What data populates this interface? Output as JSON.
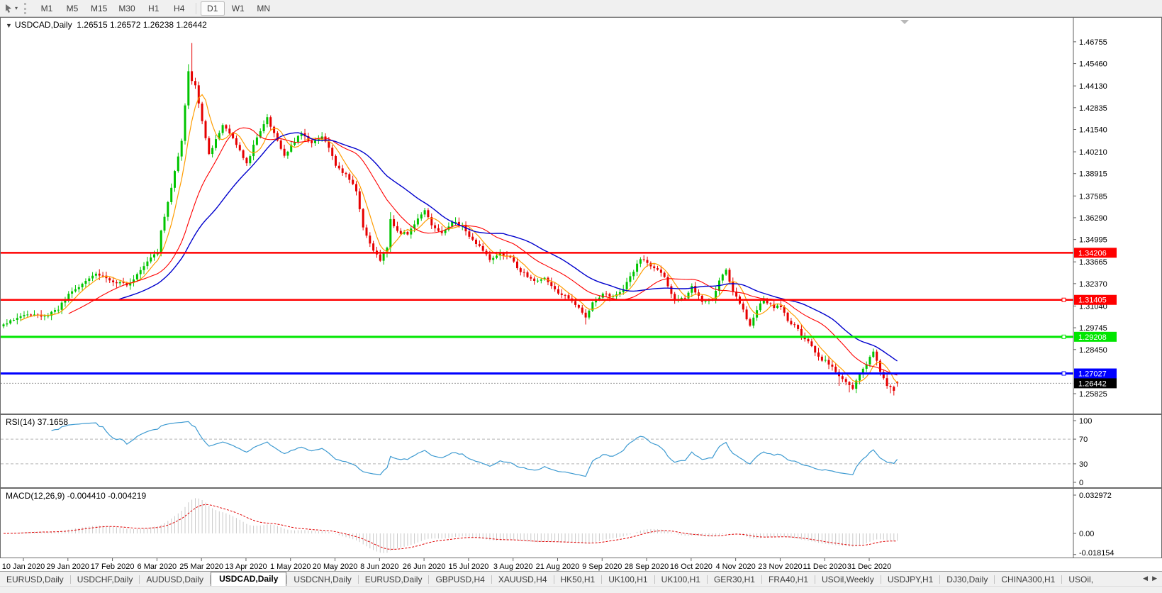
{
  "toolbar": {
    "timeframes": [
      {
        "label": "M1"
      },
      {
        "label": "M5"
      },
      {
        "label": "M15"
      },
      {
        "label": "M30"
      },
      {
        "label": "H1"
      },
      {
        "label": "H4"
      },
      {
        "label": "D1",
        "divider_before": true
      },
      {
        "label": "W1"
      },
      {
        "label": "MN"
      }
    ],
    "active_timeframe": "D1"
  },
  "main_window": {
    "title": "USDCAD,Daily",
    "ohlc": "1.26515 1.26572 1.26238 1.26442"
  },
  "price_axis": {
    "ticks": [
      "1.46755",
      "1.45460",
      "1.44130",
      "1.42835",
      "1.41540",
      "1.40210",
      "1.38915",
      "1.37585",
      "1.36290",
      "1.34995",
      "1.33665",
      "1.32370",
      "1.31040",
      "1.29745",
      "1.28450",
      "1.25825"
    ]
  },
  "rsi": {
    "name": "RSI(14)",
    "value": "37.1658",
    "period": 14,
    "levels": [
      100,
      70,
      30,
      0
    ],
    "dashed_levels": [
      70,
      30
    ],
    "color": "#3d9ad1"
  },
  "macd": {
    "name": "MACD(12,26,9)",
    "values": "-0.004410 -0.004219",
    "fast": 12,
    "slow": 26,
    "signal": 9,
    "axis_ticks": [
      "0.032972",
      "0.00",
      "-0.018154"
    ],
    "histogram_color": "#c9c9c9",
    "signal_color": "#e00000"
  },
  "date_axis": {
    "labels": [
      "10 Jan 2020",
      "29 Jan 2020",
      "17 Feb 2020",
      "6 Mar 2020",
      "25 Mar 2020",
      "13 Apr 2020",
      "1 May 2020",
      "20 May 2020",
      "8 Jun 2020",
      "26 Jun 2020",
      "15 Jul 2020",
      "3 Aug 2020",
      "21 Aug 2020",
      "9 Sep 2020",
      "28 Sep 2020",
      "16 Oct 2020",
      "4 Nov 2020",
      "23 Nov 2020",
      "11 Dec 2020",
      "31 Dec 2020"
    ]
  },
  "tab_bar": {
    "tabs": [
      "EURUSD,Daily",
      "USDCHF,Daily",
      "AUDUSD,Daily",
      "USDCAD,Daily",
      "USDCNH,Daily",
      "EURUSD,Daily",
      "GBPUSD,H4",
      "XAUUSD,H4",
      "HK50,H1",
      "UK100,H1",
      "UK100,H1",
      "GER30,H1",
      "FRA40,H1",
      "USOil,Weekly",
      "USDJPY,H1",
      "DJ30,Daily",
      "CHINA300,H1",
      "USOil,"
    ],
    "active_index": 3
  },
  "chart_data": {
    "type": "candlestick",
    "symbol": "USDCAD",
    "timeframe": "Daily",
    "title": "USDCAD,Daily 1.26515 1.26572 1.26238 1.26442",
    "ylim": [
      1.2459,
      1.4695
    ],
    "candle_count": 262,
    "colors": {
      "up": "#00c400",
      "down": "#e60000"
    },
    "current_price": 1.26442,
    "last_bar": {
      "open": 1.26515,
      "high": 1.26572,
      "low": 1.26238,
      "close": 1.26442
    },
    "price_anchors": [
      [
        0,
        1.2992
      ],
      [
        4,
        1.3035
      ],
      [
        8,
        1.3055
      ],
      [
        12,
        1.304
      ],
      [
        16,
        1.309
      ],
      [
        19,
        1.317
      ],
      [
        23,
        1.3235
      ],
      [
        27,
        1.33
      ],
      [
        30,
        1.327
      ],
      [
        33,
        1.3245
      ],
      [
        36,
        1.323
      ],
      [
        39,
        1.329
      ],
      [
        43,
        1.34
      ],
      [
        45,
        1.3425
      ],
      [
        46,
        1.356
      ],
      [
        48,
        1.372
      ],
      [
        50,
        1.39
      ],
      [
        52,
        1.408
      ],
      [
        54,
        1.45
      ],
      [
        55,
        1.445
      ],
      [
        56,
        1.442
      ],
      [
        58,
        1.421
      ],
      [
        60,
        1.401
      ],
      [
        62,
        1.409
      ],
      [
        64,
        1.418
      ],
      [
        67,
        1.411
      ],
      [
        69,
        1.403
      ],
      [
        71,
        1.395
      ],
      [
        74,
        1.411
      ],
      [
        77,
        1.422
      ],
      [
        80,
        1.408
      ],
      [
        82,
        1.399
      ],
      [
        84,
        1.406
      ],
      [
        87,
        1.413
      ],
      [
        90,
        1.407
      ],
      [
        93,
        1.411
      ],
      [
        95,
        1.405
      ],
      [
        97,
        1.393
      ],
      [
        100,
        1.389
      ],
      [
        103,
        1.379
      ],
      [
        105,
        1.357
      ],
      [
        108,
        1.343
      ],
      [
        110,
        1.338
      ],
      [
        112,
        1.345
      ],
      [
        113,
        1.362
      ],
      [
        115,
        1.3545
      ],
      [
        118,
        1.3535
      ],
      [
        121,
        1.3625
      ],
      [
        123,
        1.368
      ],
      [
        125,
        1.3585
      ],
      [
        128,
        1.3535
      ],
      [
        131,
        1.3605
      ],
      [
        134,
        1.358
      ],
      [
        136,
        1.3515
      ],
      [
        139,
        1.3455
      ],
      [
        142,
        1.3385
      ],
      [
        145,
        1.3415
      ],
      [
        148,
        1.339
      ],
      [
        151,
        1.331
      ],
      [
        155,
        1.3255
      ],
      [
        158,
        1.3265
      ],
      [
        162,
        1.3175
      ],
      [
        165,
        1.3155
      ],
      [
        168,
        1.3095
      ],
      [
        170,
        1.3035
      ],
      [
        172,
        1.3125
      ],
      [
        175,
        1.3175
      ],
      [
        178,
        1.3165
      ],
      [
        181,
        1.3205
      ],
      [
        184,
        1.3315
      ],
      [
        186,
        1.3385
      ],
      [
        188,
        1.3355
      ],
      [
        191,
        1.3315
      ],
      [
        193,
        1.3275
      ],
      [
        196,
        1.3135
      ],
      [
        199,
        1.3155
      ],
      [
        201,
        1.3215
      ],
      [
        204,
        1.3135
      ],
      [
        207,
        1.3145
      ],
      [
        209,
        1.3255
      ],
      [
        211,
        1.3325
      ],
      [
        213,
        1.3185
      ],
      [
        215,
        1.312
      ],
      [
        218,
        1.299
      ],
      [
        220,
        1.3085
      ],
      [
        222,
        1.3145
      ],
      [
        225,
        1.3095
      ],
      [
        227,
        1.3105
      ],
      [
        229,
        1.301
      ],
      [
        231,
        1.299
      ],
      [
        233,
        1.2935
      ],
      [
        236,
        1.2865
      ],
      [
        238,
        1.2795
      ],
      [
        240,
        1.2775
      ],
      [
        242,
        1.2745
      ],
      [
        244,
        1.269
      ],
      [
        246,
        1.2645
      ],
      [
        248,
        1.2618
      ],
      [
        250,
        1.27
      ],
      [
        252,
        1.2748
      ],
      [
        254,
        1.2838
      ],
      [
        256,
        1.2705
      ],
      [
        258,
        1.2635
      ],
      [
        260,
        1.26
      ],
      [
        261,
        1.26442
      ]
    ],
    "wick_overrides": {
      "54": {
        "high": 1.4542
      },
      "55": {
        "high": 1.4668
      },
      "113": {
        "high": 1.3662
      },
      "170": {
        "low": 1.2994
      },
      "244": {
        "low": 1.2629
      },
      "247": {
        "low": 1.259
      },
      "259": {
        "low": 1.2585
      },
      "260": {
        "low": 1.2572,
        "close": 1.26
      },
      "261": {
        "open": 1.26515,
        "high": 1.26572,
        "low": 1.26238,
        "close": 1.26442
      }
    },
    "moving_averages": [
      {
        "period": 6,
        "color": "#ff9c00",
        "width": 1.2
      },
      {
        "period": 20,
        "color": "#ff0000",
        "width": 1.1
      },
      {
        "period": 34,
        "color": "#0000cd",
        "width": 1.4
      }
    ],
    "hlines": [
      {
        "price": 1.34206,
        "color": "#ff0000",
        "thickness": 2.5,
        "handle": false
      },
      {
        "price": 1.31405,
        "color": "#ff0000",
        "thickness": 2.5,
        "handle": true
      },
      {
        "price": 1.29208,
        "color": "#00e600",
        "thickness": 3,
        "handle": true
      },
      {
        "price": 1.27027,
        "color": "#0000ff",
        "thickness": 3,
        "handle": true
      }
    ]
  }
}
